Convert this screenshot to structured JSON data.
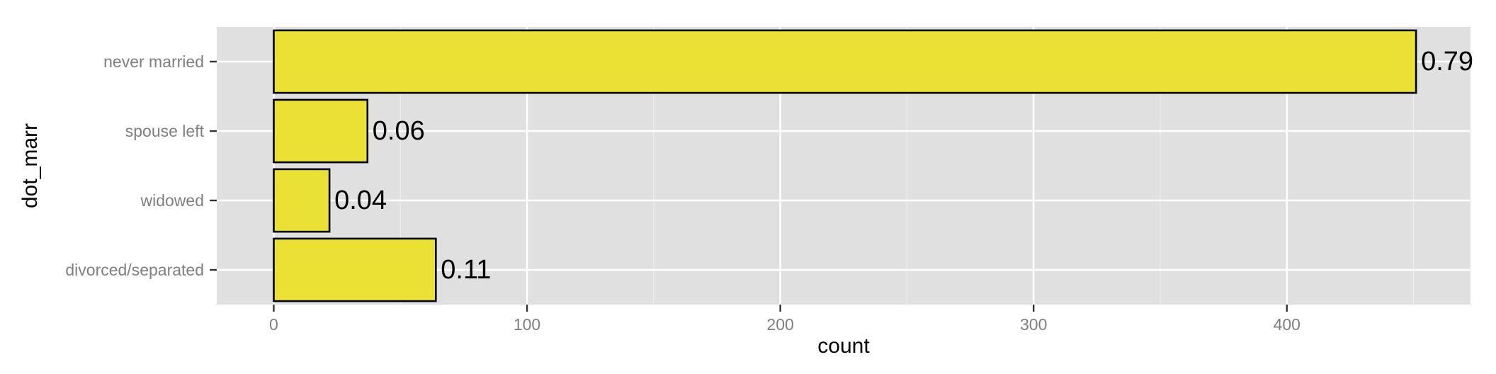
{
  "chart_data": {
    "type": "bar",
    "orientation": "horizontal",
    "categories": [
      "never married",
      "spouse left",
      "widowed",
      "divorced/separated"
    ],
    "values": [
      451,
      37,
      22,
      64
    ],
    "data_labels": [
      "0.79",
      "0.06",
      "0.04",
      "0.11"
    ],
    "title": "",
    "xlabel": "count",
    "ylabel": "dot_marr",
    "xlim": [
      -22.5,
      472.5
    ],
    "x_ticks": [
      0,
      100,
      200,
      300,
      400
    ],
    "x_tick_labels": [
      "0",
      "100",
      "200",
      "300",
      "400"
    ],
    "grid": true,
    "legend": "none",
    "colors": {
      "bar_fill": "#ebe135",
      "bar_stroke": "#000000",
      "panel_background": "#e0e0e0",
      "grid_major": "#ffffff",
      "grid_minor": "#eeeeee",
      "tick_label": "#7f7f7f"
    }
  }
}
